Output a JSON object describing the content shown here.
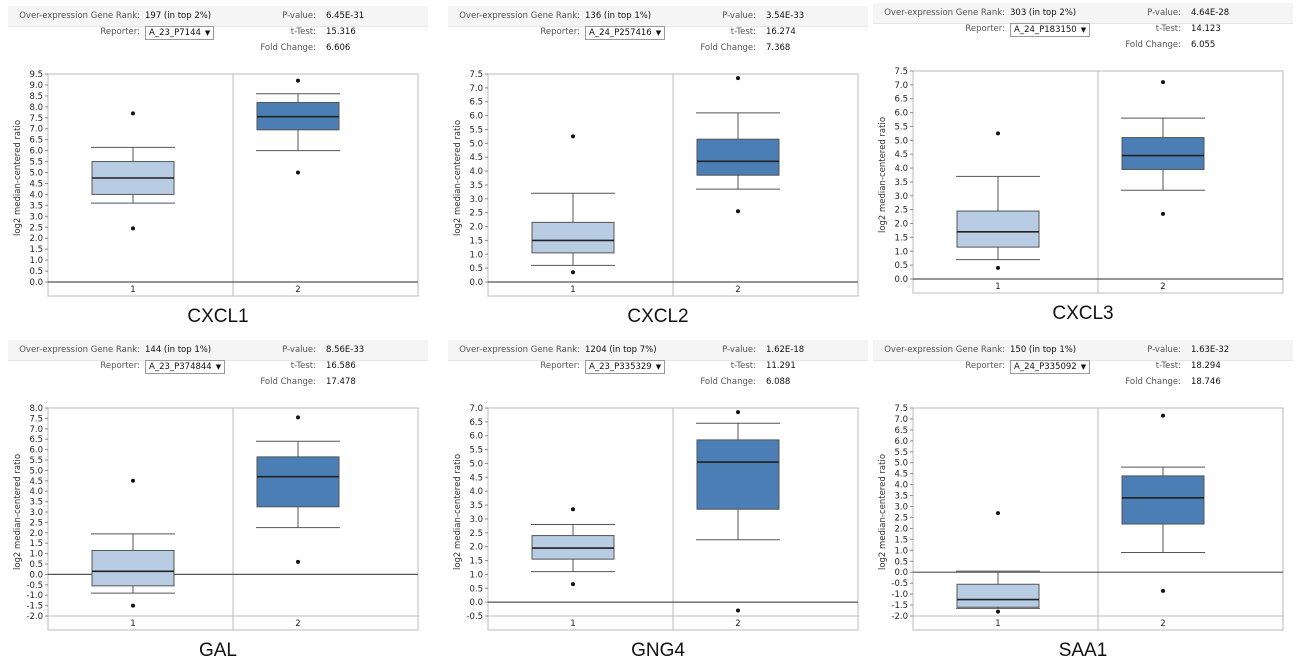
{
  "colors": {
    "group1_box": "#b8cde4",
    "group2_box": "#4a7eb5",
    "box_stroke": "#555555",
    "median": "#222222",
    "frame": "#bbbbbb",
    "zero_line": "#555555"
  },
  "labels": {
    "rank_label": "Over-expression Gene Rank:",
    "reporter_label": "Reporter:",
    "pvalue_label": "P-value:",
    "ttest_label": "t-Test:",
    "fold_label": "Fold Change:",
    "ylabel": "log2 median-centered ratio"
  },
  "panels": [
    {
      "gene": "CXCL1",
      "rank": "197 (in top 2%)",
      "reporter": "A_23_P7144",
      "pvalue": "6.45E-31",
      "ttest": "15.316",
      "fold": "6.606",
      "chart_data": {
        "type": "box",
        "ylabel": "log2 median-centered ratio",
        "ylim": [
          0,
          9.5
        ],
        "yticks": [
          "0.0",
          "0.5",
          "1.0",
          "1.5",
          "2.0",
          "2.5",
          "3.0",
          "3.5",
          "4.0",
          "4.5",
          "5.0",
          "5.5",
          "6.0",
          "6.5",
          "7.0",
          "7.5",
          "8.0",
          "8.5",
          "9.0",
          "9.5"
        ],
        "zero_line": 0,
        "categories": [
          "1",
          "2"
        ],
        "boxes": [
          {
            "min": 3.6,
            "q1": 4.0,
            "median": 4.75,
            "q3": 5.5,
            "max": 6.15,
            "outliers": [
              7.7,
              2.45
            ]
          },
          {
            "min": 6.0,
            "q1": 6.95,
            "median": 7.55,
            "q3": 8.2,
            "max": 8.6,
            "outliers": [
              9.2,
              5.0
            ]
          }
        ]
      }
    },
    {
      "gene": "CXCL2",
      "rank": "136 (in top 1%)",
      "reporter": "A_24_P257416",
      "pvalue": "3.54E-33",
      "ttest": "16.274",
      "fold": "7.368",
      "chart_data": {
        "type": "box",
        "ylabel": "log2 median-centered ratio",
        "ylim": [
          0,
          7.5
        ],
        "yticks": [
          "0.0",
          "0.5",
          "1.0",
          "1.5",
          "2.0",
          "2.5",
          "3.0",
          "3.5",
          "4.0",
          "4.5",
          "5.0",
          "5.5",
          "6.0",
          "6.5",
          "7.0",
          "7.5"
        ],
        "zero_line": 0,
        "categories": [
          "1",
          "2"
        ],
        "boxes": [
          {
            "min": 0.6,
            "q1": 1.05,
            "median": 1.5,
            "q3": 2.15,
            "max": 3.2,
            "outliers": [
              5.25,
              0.35
            ]
          },
          {
            "min": 3.35,
            "q1": 3.85,
            "median": 4.35,
            "q3": 5.15,
            "max": 6.1,
            "outliers": [
              7.35,
              2.55
            ]
          }
        ]
      }
    },
    {
      "gene": "CXCL3",
      "rank": "303 (in top 2%)",
      "reporter": "A_24_P183150",
      "pvalue": "4.64E-28",
      "ttest": "14.123",
      "fold": "6.055",
      "chart_data": {
        "type": "box",
        "ylabel": "log2 median-centered ratio",
        "ylim": [
          0,
          7.5
        ],
        "yticks": [
          "0.0",
          "0.5",
          "1.0",
          "1.5",
          "2.0",
          "2.5",
          "3.0",
          "3.5",
          "4.0",
          "4.5",
          "5.0",
          "5.5",
          "6.0",
          "6.5",
          "7.0",
          "7.5"
        ],
        "zero_line": 0,
        "categories": [
          "1",
          "2"
        ],
        "boxes": [
          {
            "min": 0.7,
            "q1": 1.15,
            "median": 1.7,
            "q3": 2.45,
            "max": 3.7,
            "outliers": [
              5.25,
              0.4
            ]
          },
          {
            "min": 3.2,
            "q1": 3.95,
            "median": 4.45,
            "q3": 5.1,
            "max": 5.8,
            "outliers": [
              7.1,
              2.35
            ]
          }
        ]
      }
    },
    {
      "gene": "GAL",
      "rank": "144 (in top 1%)",
      "reporter": "A_23_P374844",
      "pvalue": "8.56E-33",
      "ttest": "16.586",
      "fold": "17.478",
      "chart_data": {
        "type": "box",
        "ylabel": "log2 median-centered ratio",
        "ylim": [
          -2.0,
          8.0
        ],
        "yticks": [
          "-2.0",
          "-1.5",
          "-1.0",
          "-0.5",
          "0.0",
          "0.5",
          "1.0",
          "1.5",
          "2.0",
          "2.5",
          "3.0",
          "3.5",
          "4.0",
          "4.5",
          "5.0",
          "5.5",
          "6.0",
          "6.5",
          "7.0",
          "7.5",
          "8.0"
        ],
        "zero_line": 0,
        "categories": [
          "1",
          "2"
        ],
        "boxes": [
          {
            "min": -0.9,
            "q1": -0.55,
            "median": 0.15,
            "q3": 1.15,
            "max": 1.95,
            "outliers": [
              4.5,
              -1.5
            ]
          },
          {
            "min": 2.25,
            "q1": 3.25,
            "median": 4.7,
            "q3": 5.65,
            "max": 6.4,
            "outliers": [
              7.55,
              0.6
            ]
          }
        ]
      }
    },
    {
      "gene": "GNG4",
      "rank": "1204 (in top 7%)",
      "reporter": "A_23_P335329",
      "pvalue": "1.62E-18",
      "ttest": "11.291",
      "fold": "6.088",
      "chart_data": {
        "type": "box",
        "ylabel": "log2 median-centered ratio",
        "ylim": [
          -0.5,
          7.0
        ],
        "yticks": [
          "-0.5",
          "0.0",
          "0.5",
          "1.0",
          "1.5",
          "2.0",
          "2.5",
          "3.0",
          "3.5",
          "4.0",
          "4.5",
          "5.0",
          "5.5",
          "6.0",
          "6.5",
          "7.0"
        ],
        "zero_line": 0,
        "categories": [
          "1",
          "2"
        ],
        "boxes": [
          {
            "min": 1.1,
            "q1": 1.55,
            "median": 1.95,
            "q3": 2.4,
            "max": 2.8,
            "outliers": [
              3.35,
              0.65
            ]
          },
          {
            "min": 2.25,
            "q1": 3.35,
            "median": 5.05,
            "q3": 5.85,
            "max": 6.45,
            "outliers": [
              6.85,
              -0.3
            ]
          }
        ]
      }
    },
    {
      "gene": "SAA1",
      "rank": "150 (in top 1%)",
      "reporter": "A_24_P335092",
      "pvalue": "1.63E-32",
      "ttest": "18.294",
      "fold": "18.746",
      "chart_data": {
        "type": "box",
        "ylabel": "log2 median-centered ratio",
        "ylim": [
          -2.0,
          7.5
        ],
        "yticks": [
          "-2.0",
          "-1.5",
          "-1.0",
          "-0.5",
          "0.0",
          "0.5",
          "1.0",
          "1.5",
          "2.0",
          "2.5",
          "3.0",
          "3.5",
          "4.0",
          "4.5",
          "5.0",
          "5.5",
          "6.0",
          "6.5",
          "7.0",
          "7.5"
        ],
        "zero_line": 0,
        "categories": [
          "1",
          "2"
        ],
        "boxes": [
          {
            "min": -1.65,
            "q1": -1.6,
            "median": -1.25,
            "q3": -0.55,
            "max": 0.05,
            "outliers": [
              2.7,
              -1.8
            ]
          },
          {
            "min": 0.9,
            "q1": 2.2,
            "median": 3.4,
            "q3": 4.4,
            "max": 4.8,
            "outliers": [
              7.15,
              -0.85
            ]
          }
        ]
      }
    }
  ]
}
